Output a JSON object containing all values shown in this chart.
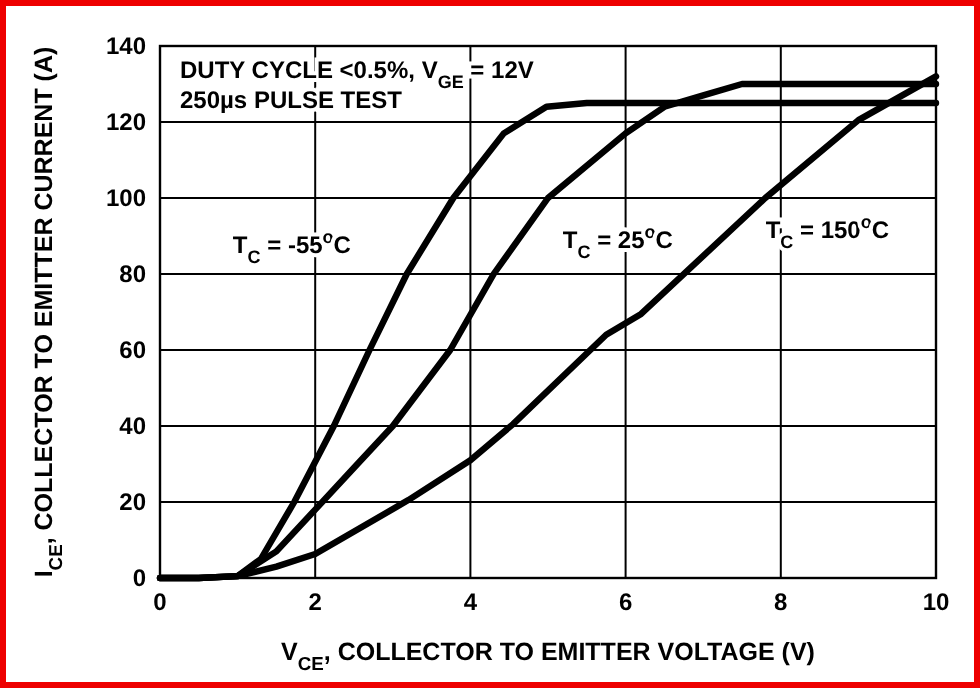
{
  "chart_data": {
    "type": "line",
    "xlabel": "V$_{CE}$, COLLECTOR TO EMITTER VOLTAGE (V)",
    "ylabel": "I$_{CE}$, COLLECTOR TO EMITTER CURRENT (A)",
    "xlim": [
      0,
      10
    ],
    "xticks": [
      0,
      2,
      4,
      6,
      8,
      10
    ],
    "ylim": [
      0,
      140
    ],
    "yticks": [
      0,
      20,
      40,
      60,
      80,
      100,
      120,
      140
    ],
    "grid": true,
    "line_style": "solid",
    "series": [
      {
        "color": "#000000",
        "x": [
          0,
          0.5,
          1,
          1.3,
          1.73,
          2.24,
          2.7,
          3.18,
          3.78,
          4.43,
          4.98,
          5.5,
          10
        ],
        "values": [
          0,
          0,
          0.5,
          5,
          20,
          40,
          60,
          80,
          100,
          117,
          124,
          125,
          125
        ]
      },
      {
        "color": "#000000",
        "x": [
          0,
          0.5,
          1,
          1.5,
          2,
          2.5,
          3,
          3.74,
          4.3,
          5,
          6,
          6.5,
          7,
          7.5,
          10
        ],
        "values": [
          0,
          0,
          0.5,
          7,
          18,
          29,
          40,
          60,
          80,
          100,
          117,
          124,
          127,
          130,
          130
        ]
      },
      {
        "color": "#000000",
        "x": [
          0,
          0.5,
          1,
          1.5,
          2,
          3.2,
          4,
          4.55,
          5.75,
          6.2,
          7.8,
          9,
          10
        ],
        "values": [
          0,
          0,
          0.5,
          3,
          6.3,
          20.5,
          31,
          40.5,
          64,
          69.5,
          100,
          120.5,
          132
        ]
      }
    ],
    "annotations": [
      "DUTY CYCLE <0.5%, V$_{GE}$ = 12V",
      "250µs PULSE TEST",
      "T$_{C}$ = -55$^{o}$C",
      "T$_{C}$ = 25$^{o}$C",
      "T$_{C}$ = 150$^{o}$C"
    ]
  }
}
